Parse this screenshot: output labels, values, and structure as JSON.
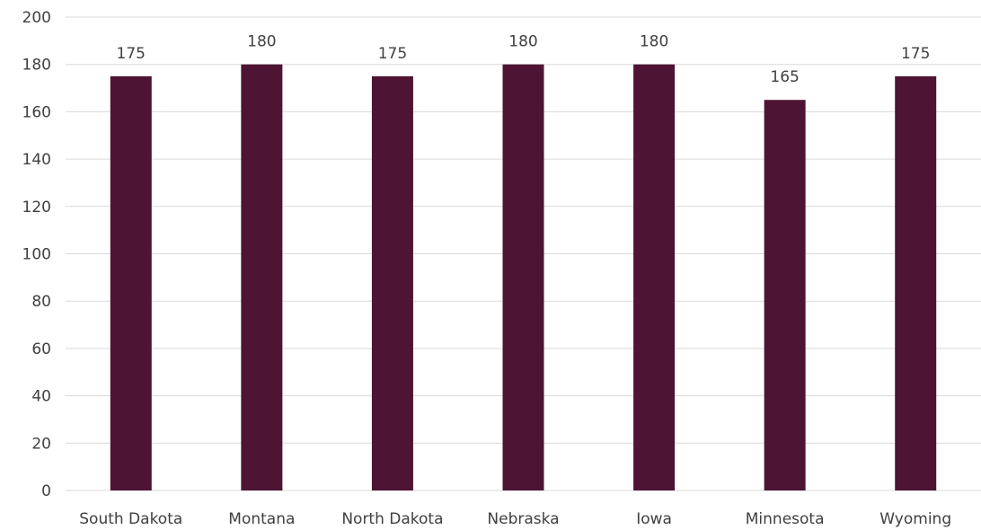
{
  "chart_data": {
    "type": "bar",
    "title": "",
    "xlabel": "",
    "ylabel": "",
    "categories": [
      "South Dakota",
      "Montana",
      "North Dakota",
      "Nebraska",
      "Iowa",
      "Minnesota",
      "Wyoming"
    ],
    "values": [
      175,
      180,
      175,
      180,
      180,
      165,
      175
    ],
    "data_labels": [
      "175",
      "180",
      "175",
      "180",
      "180",
      "165",
      "175"
    ],
    "ylim": [
      0,
      200
    ],
    "yticks": [
      0,
      20,
      40,
      60,
      80,
      100,
      120,
      140,
      160,
      180,
      200
    ],
    "grid": true,
    "legend": "none",
    "bar_color": "#4d1433",
    "grid_color": "#d9d9d9",
    "text_color": "#404040"
  }
}
